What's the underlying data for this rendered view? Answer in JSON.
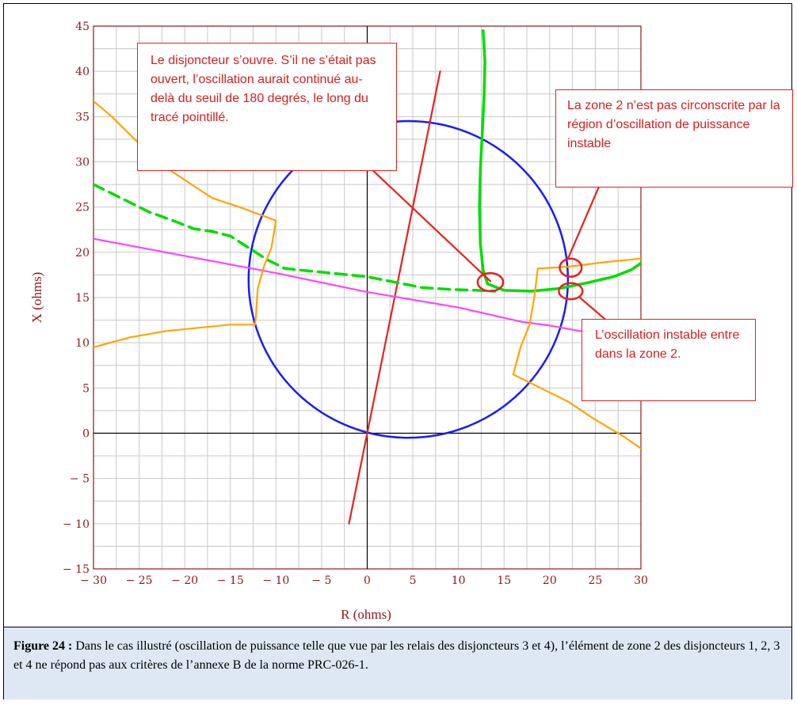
{
  "chart_data": {
    "type": "line",
    "xlabel": "R (ohms)",
    "ylabel": "X (ohms)",
    "xlim": [
      -30,
      30
    ],
    "ylim": [
      -15,
      45
    ],
    "xticks": [
      -30,
      -25,
      -20,
      -15,
      -10,
      -5,
      0,
      5,
      10,
      15,
      20,
      25,
      30
    ],
    "yticks": [
      -15,
      -10,
      -5,
      0,
      5,
      10,
      15,
      20,
      25,
      30,
      35,
      40,
      45
    ],
    "xtick_labels": [
      "− 30",
      "− 25",
      "− 20",
      "− 15",
      "− 10",
      "− 5",
      "0",
      "5",
      "10",
      "15",
      "20",
      "25",
      "30"
    ],
    "ytick_labels": [
      "− 15",
      "− 10",
      "− 5",
      "0",
      "5",
      "10",
      "15",
      "20",
      "25",
      "30",
      "35",
      "40",
      "45"
    ],
    "grid": true,
    "series": [
      {
        "kind": "circle",
        "color": "#1a1aff",
        "center": [
          4.5,
          17
        ],
        "radius": 17.5
      },
      {
        "kind": "line",
        "color": "#e82020",
        "points": [
          [
            -2,
            -10
          ],
          [
            8,
            40
          ]
        ]
      },
      {
        "kind": "line",
        "color": "#ff44ff",
        "points": [
          [
            -30,
            21.5
          ],
          [
            -20,
            19.6
          ],
          [
            -10,
            17.7
          ],
          [
            0,
            15.6
          ],
          [
            10,
            13.9
          ],
          [
            17,
            12.3
          ],
          [
            20,
            11.9
          ],
          [
            25,
            11.0
          ],
          [
            30,
            10.2
          ]
        ]
      },
      {
        "kind": "line",
        "color": "#00dd00",
        "points": [
          [
            12.7,
            44.5
          ],
          [
            12.9,
            41
          ],
          [
            12.8,
            37
          ],
          [
            12.6,
            33
          ],
          [
            12.4,
            29
          ],
          [
            12.3,
            25
          ],
          [
            12.4,
            21
          ],
          [
            12.7,
            18
          ],
          [
            13.2,
            16.5
          ],
          [
            15,
            15.8
          ],
          [
            18,
            15.7
          ],
          [
            21,
            16.0
          ],
          [
            24,
            16.6
          ],
          [
            27,
            17.3
          ],
          [
            29,
            18.1
          ],
          [
            30,
            18.8
          ]
        ]
      },
      {
        "kind": "dashed",
        "color": "#00dd00",
        "points": [
          [
            -30,
            27.5
          ],
          [
            -27,
            26
          ],
          [
            -24,
            24.5
          ],
          [
            -21,
            23.4
          ],
          [
            -19,
            22.6
          ],
          [
            -17,
            22.3
          ],
          [
            -15,
            21.8
          ],
          [
            -13,
            20.5
          ],
          [
            -11,
            19.2
          ],
          [
            -9,
            18.2
          ],
          [
            -6,
            17.9
          ],
          [
            -3,
            17.6
          ],
          [
            0,
            17.3
          ],
          [
            3,
            16.7
          ],
          [
            6,
            16.1
          ],
          [
            9,
            15.9
          ],
          [
            12,
            15.8
          ],
          [
            14,
            15.7
          ]
        ]
      },
      {
        "kind": "line",
        "color": "#ffa500",
        "points": [
          [
            -30,
            36.7
          ],
          [
            -28,
            35
          ],
          [
            -26,
            33
          ],
          [
            -23,
            30
          ],
          [
            -20,
            28
          ],
          [
            -17,
            26
          ],
          [
            -14,
            25
          ],
          [
            -10,
            23.5
          ],
          [
            -10.5,
            20.5
          ],
          [
            -11.3,
            18.5
          ],
          [
            -12,
            16
          ],
          [
            -12.2,
            12.8
          ],
          [
            -12.3,
            12.0
          ],
          [
            -15,
            12.0
          ],
          [
            -18,
            11.7
          ],
          [
            -22,
            11.3
          ],
          [
            -26,
            10.6
          ],
          [
            -30,
            9.5
          ]
        ]
      },
      {
        "kind": "line",
        "color": "#ffa500",
        "points": [
          [
            30,
            19.3
          ],
          [
            26,
            18.9
          ],
          [
            22,
            18.4
          ],
          [
            18.7,
            18.2
          ],
          [
            18.7,
            18.2
          ],
          [
            18.3,
            15
          ],
          [
            17.8,
            12
          ],
          [
            16.8,
            9.5
          ],
          [
            16,
            6.5
          ],
          [
            19,
            5
          ],
          [
            22,
            3.5
          ],
          [
            25,
            1.5
          ],
          [
            28,
            -0.3
          ],
          [
            30,
            -1.7
          ]
        ]
      },
      {
        "kind": "line",
        "color": "#e82020",
        "points": [
          [
            -0.7,
            30.3
          ],
          [
            13.5,
            16.8
          ]
        ]
      },
      {
        "kind": "line",
        "color": "#e82020",
        "points": [
          [
            22,
            19.3
          ],
          [
            25.5,
            27.5
          ]
        ]
      },
      {
        "kind": "line",
        "color": "#e82020",
        "points": [
          [
            23.3,
            15
          ],
          [
            27,
            11.8
          ]
        ]
      }
    ],
    "markers": [
      {
        "kind": "ellipse",
        "color": "#e82020",
        "center": [
          13.5,
          16.7
        ],
        "rx": 1.4,
        "ry": 1.0
      },
      {
        "kind": "ellipse",
        "color": "#e82020",
        "center": [
          22.3,
          18.3
        ],
        "rx": 1.2,
        "ry": 1.0
      },
      {
        "kind": "ellipse",
        "color": "#e82020",
        "center": [
          22.3,
          15.7
        ],
        "rx": 1.3,
        "ry": 0.9
      }
    ]
  },
  "callouts": {
    "breaker": "Le disjoncteur s’ouvre. S’il ne s’était pas ouvert, l’oscillation aurait continué au-delà du seuil de 180 degrés, le long du tracé pointillé.",
    "zone2_not_circumscribed": "La zone 2 n’est pas circonscrite par la région d’oscillation de puissance instable",
    "unstable_enters": "L’oscillation instable entre dans la zone 2."
  },
  "caption": {
    "label": "Figure 24 :",
    "text": " Dans le cas illustré (oscillation de puissance telle que vue par les relais des disjoncteurs 3 et 4), l’élément de zone 2 des disjoncteurs 1, 2, 3 et 4 ne répond pas aux critères de l’annexe B de la norme PRC-026-1."
  }
}
